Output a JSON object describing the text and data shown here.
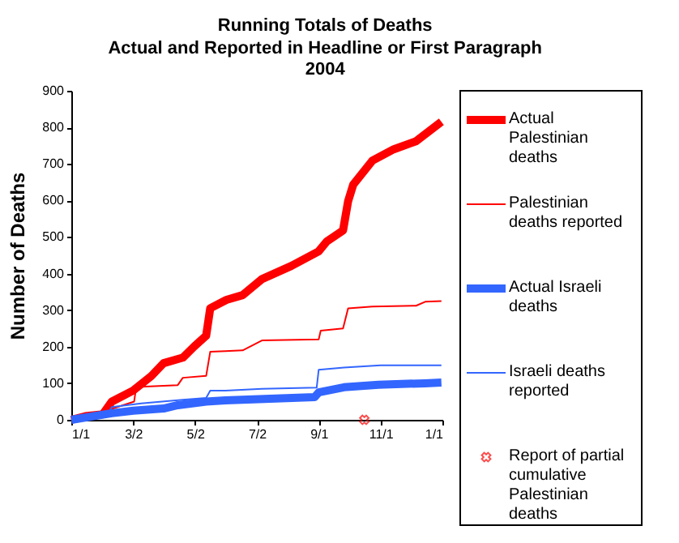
{
  "chart_data": {
    "type": "line",
    "title": "Running Totals of Deaths",
    "subtitle": "Actual and Reported in Headline or First Paragraph",
    "annotations": [
      "2004"
    ],
    "ylabel": "Number of Deaths",
    "xlim": [
      "2004-01-01",
      "2005-01-01"
    ],
    "xticks": [
      {
        "value": "2004-01-01",
        "label": "1/1"
      },
      {
        "value": "2004-03-02",
        "label": "3/2"
      },
      {
        "value": "2004-05-02",
        "label": "5/2"
      },
      {
        "value": "2004-07-02",
        "label": "7/2"
      },
      {
        "value": "2004-09-01",
        "label": "9/1"
      },
      {
        "value": "2004-11-01",
        "label": "11/1"
      },
      {
        "value": "2005-01-01",
        "label": "1/1"
      }
    ],
    "ylim": [
      0,
      900
    ],
    "yticks": [
      0,
      100,
      200,
      300,
      400,
      500,
      600,
      700,
      800,
      900
    ],
    "grid": false,
    "legend": "right",
    "line_style": "solid",
    "series": [
      {
        "name": "Actual Palestinian deaths",
        "color": "#ff0000",
        "x": [
          "2004-01-01",
          "2004-01-15",
          "2004-02-01",
          "2004-02-10",
          "2004-03-02",
          "2004-03-20",
          "2004-04-01",
          "2004-04-20",
          "2004-05-01",
          "2004-05-13",
          "2004-05-17",
          "2004-06-02",
          "2004-06-18",
          "2004-07-07",
          "2004-08-05",
          "2004-09-01",
          "2004-09-09",
          "2004-09-25",
          "2004-09-30",
          "2004-10-05",
          "2004-10-24",
          "2004-11-14",
          "2004-12-06",
          "2004-12-31"
        ],
        "values": [
          0,
          10,
          15,
          50,
          80,
          120,
          155,
          170,
          200,
          230,
          305,
          328,
          341,
          385,
          421,
          461,
          488,
          518,
          598,
          643,
          709,
          740,
          762,
          815
        ]
      },
      {
        "name": "Palestinian deaths reported",
        "color": "#ff0000",
        "x": [
          "2004-01-01",
          "2004-02-10",
          "2004-03-03",
          "2004-03-05",
          "2004-04-15",
          "2004-04-20",
          "2004-05-13",
          "2004-05-17",
          "2004-06-01",
          "2004-06-18",
          "2004-07-07",
          "2004-09-01",
          "2004-09-03",
          "2004-09-25",
          "2004-09-30",
          "2004-10-24",
          "2004-12-06",
          "2004-12-15",
          "2004-12-31"
        ],
        "values": [
          0,
          30,
          50,
          90,
          95,
          115,
          120,
          186,
          188,
          190,
          217,
          220,
          244,
          250,
          305,
          310,
          312,
          323,
          325
        ]
      },
      {
        "name": "Actual Israeli deaths",
        "color": "#3366ff",
        "x": [
          "2004-01-01",
          "2004-02-10",
          "2004-03-02",
          "2004-04-01",
          "2004-04-15",
          "2004-05-13",
          "2004-06-01",
          "2004-08-28",
          "2004-09-01",
          "2004-09-26",
          "2004-10-30",
          "2004-12-15",
          "2004-12-31"
        ],
        "values": [
          0,
          18,
          25,
          31,
          40,
          50,
          53,
          62,
          75,
          89,
          96,
          100,
          102
        ]
      },
      {
        "name": "Israeli deaths reported",
        "color": "#3366ff",
        "x": [
          "2004-01-01",
          "2004-02-05",
          "2004-02-10",
          "2004-03-10",
          "2004-04-20",
          "2004-05-13",
          "2004-05-17",
          "2004-06-01",
          "2004-07-07",
          "2004-08-30",
          "2004-09-01",
          "2004-09-26",
          "2004-11-01",
          "2004-12-31"
        ],
        "values": [
          0,
          10,
          35,
          45,
          55,
          60,
          80,
          80,
          85,
          88,
          137,
          143,
          149,
          149
        ]
      },
      {
        "name": "Report of partial cumulative Palestinian deaths",
        "type": "scatter",
        "marker": "cross",
        "color": "#ff0000",
        "x": [
          "2004-10-16"
        ],
        "values": [
          0
        ]
      }
    ]
  }
}
